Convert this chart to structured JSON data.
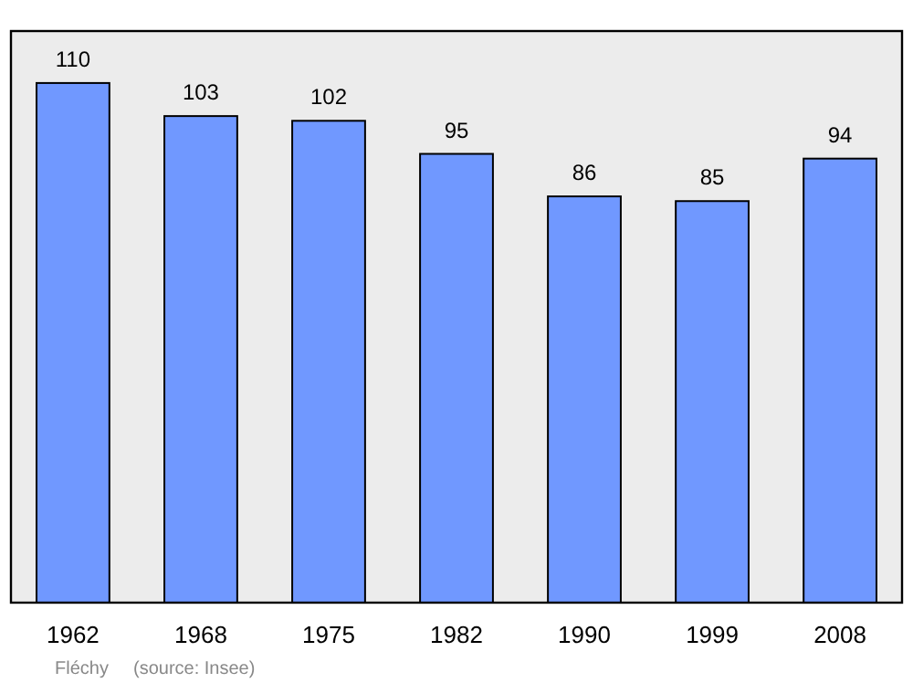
{
  "chart_data": {
    "type": "bar",
    "categories": [
      "1962",
      "1968",
      "1975",
      "1982",
      "1990",
      "1999",
      "2008"
    ],
    "values": [
      110,
      103,
      102,
      95,
      86,
      85,
      94
    ],
    "color": "#7098ff",
    "ylim": [
      0,
      121
    ],
    "data_labels": true,
    "annotations": [
      "Fléchy",
      "(source: Insee)"
    ]
  }
}
